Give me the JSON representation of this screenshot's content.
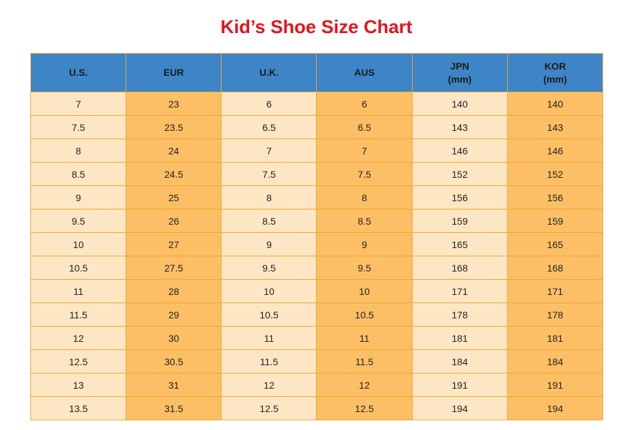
{
  "title": "Kid’s Shoe Size Chart",
  "colors": {
    "title": "#e8121b",
    "header_bg": "#3d85c6",
    "light_column": "#fde6c4",
    "dark_column": "#fcbf65",
    "border": "#f0a830"
  },
  "table": {
    "headers": [
      "U.S.",
      "EUR",
      "U.K.",
      "AUS",
      "JPN\n(mm)",
      "KOR\n(mm)"
    ],
    "rows": [
      [
        "7",
        "23",
        "6",
        "6",
        "140",
        "140"
      ],
      [
        "7.5",
        "23.5",
        "6.5",
        "6.5",
        "143",
        "143"
      ],
      [
        "8",
        "24",
        "7",
        "7",
        "146",
        "146"
      ],
      [
        "8.5",
        "24.5",
        "7.5",
        "7.5",
        "152",
        "152"
      ],
      [
        "9",
        "25",
        "8",
        "8",
        "156",
        "156"
      ],
      [
        "9.5",
        "26",
        "8.5",
        "8.5",
        "159",
        "159"
      ],
      [
        "10",
        "27",
        "9",
        "9",
        "165",
        "165"
      ],
      [
        "10.5",
        "27.5",
        "9.5",
        "9.5",
        "168",
        "168"
      ],
      [
        "11",
        "28",
        "10",
        "10",
        "171",
        "171"
      ],
      [
        "11.5",
        "29",
        "10.5",
        "10.5",
        "178",
        "178"
      ],
      [
        "12",
        "30",
        "11",
        "11",
        "181",
        "181"
      ],
      [
        "12.5",
        "30.5",
        "11.5",
        "11.5",
        "184",
        "184"
      ],
      [
        "13",
        "31",
        "12",
        "12",
        "191",
        "191"
      ],
      [
        "13.5",
        "31.5",
        "12.5",
        "12.5",
        "194",
        "194"
      ]
    ]
  }
}
